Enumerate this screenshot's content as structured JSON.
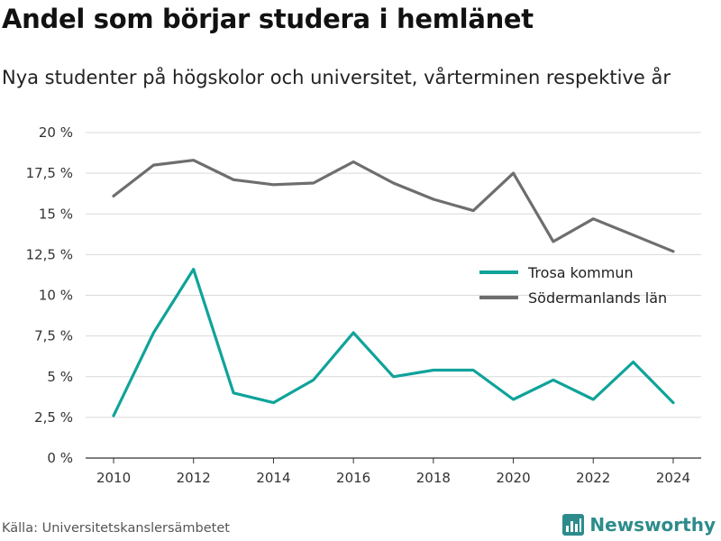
{
  "header": {
    "title": "Andel som börjar studera i hemlänet",
    "subtitle": "Nya studenter på högskolor och universitet, vårterminen respektive år"
  },
  "footer": {
    "source": "Källa: Universitetskanslersämbetet",
    "brand": "Newsworthy",
    "brand_icon": "bar-chart-icon"
  },
  "colors": {
    "trosa": "#0fa39a",
    "sodermanland": "#6e6e6e",
    "grid": "#d9d9d9",
    "axis": "#333333",
    "brand": "#2e8b8b"
  },
  "chart_data": {
    "type": "line",
    "title": "Andel som börjar studera i hemlänet",
    "subtitle": "Nya studenter på högskolor och universitet, vårterminen respektive år",
    "x": [
      2010,
      2011,
      2012,
      2013,
      2014,
      2015,
      2016,
      2017,
      2018,
      2019,
      2020,
      2021,
      2022,
      2023,
      2024
    ],
    "x_ticks": [
      2010,
      2012,
      2014,
      2016,
      2018,
      2020,
      2022,
      2024
    ],
    "y_ticks": [
      0,
      2.5,
      5,
      7.5,
      10,
      12.5,
      15,
      17.5,
      20
    ],
    "y_tick_labels": [
      "0 %",
      "2,5 %",
      "5 %",
      "7,5 %",
      "10 %",
      "12,5 %",
      "15 %",
      "17,5 %",
      "20 %"
    ],
    "ylim": [
      0,
      20
    ],
    "xlim": [
      2009.3,
      2024.7
    ],
    "grid": true,
    "legend_position": "right",
    "series": [
      {
        "name": "Trosa kommun",
        "color": "#0fa39a",
        "values": [
          2.6,
          7.7,
          11.6,
          4.0,
          3.4,
          4.8,
          7.7,
          5.0,
          5.4,
          5.4,
          3.6,
          4.8,
          3.6,
          5.9,
          3.4
        ]
      },
      {
        "name": "Södermanlands län",
        "color": "#6e6e6e",
        "values": [
          16.1,
          18.0,
          18.3,
          17.1,
          16.8,
          16.9,
          18.2,
          16.9,
          15.9,
          15.2,
          17.5,
          13.3,
          14.7,
          13.7,
          12.7
        ]
      }
    ]
  }
}
